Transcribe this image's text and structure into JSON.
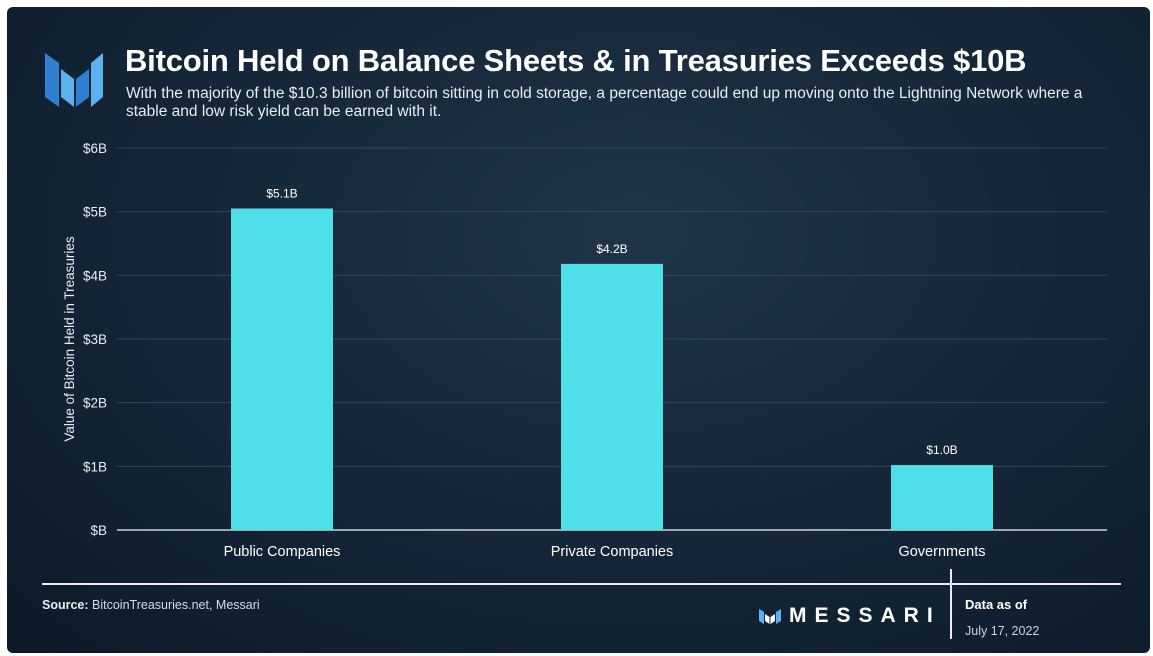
{
  "header": {
    "title": "Bitcoin Held on Balance Sheets & in Treasuries Exceeds $10B",
    "subtitle": "With the majority of the $10.3 billion of bitcoin sitting in cold storage, a percentage could end up moving onto the Lightning Network where a stable and low risk yield can be earned with it."
  },
  "chart_data": {
    "type": "bar",
    "title": "Bitcoin Held on Balance Sheets & in Treasuries Exceeds $10B",
    "categories": [
      "Public Companies",
      "Private Companies",
      "Governments"
    ],
    "values": [
      5.05,
      4.18,
      1.02
    ],
    "data_labels": [
      "$5.1B",
      "$4.2B",
      "$1.0B"
    ],
    "ylabel": "Value of Bitcoin Held in Treasuries",
    "xlabel": "",
    "ylim": [
      0,
      6
    ],
    "yticks": [
      {
        "value": 0,
        "label": "$B"
      },
      {
        "value": 1,
        "label": "$1B"
      },
      {
        "value": 2,
        "label": "$2B"
      },
      {
        "value": 3,
        "label": "$3B"
      },
      {
        "value": 4,
        "label": "$4B"
      },
      {
        "value": 5,
        "label": "$5B"
      },
      {
        "value": 6,
        "label": "$6B"
      }
    ],
    "grid": true,
    "bar_color": "#4fdfe8"
  },
  "footer": {
    "source_label": "Source:",
    "source_text": " BitcoinTreasuries.net, Messari",
    "brand": "MESSARI",
    "date_label": "Data as of",
    "date_value": "July 17, 2022"
  },
  "icons": {
    "logo": "messari-logo-icon"
  }
}
